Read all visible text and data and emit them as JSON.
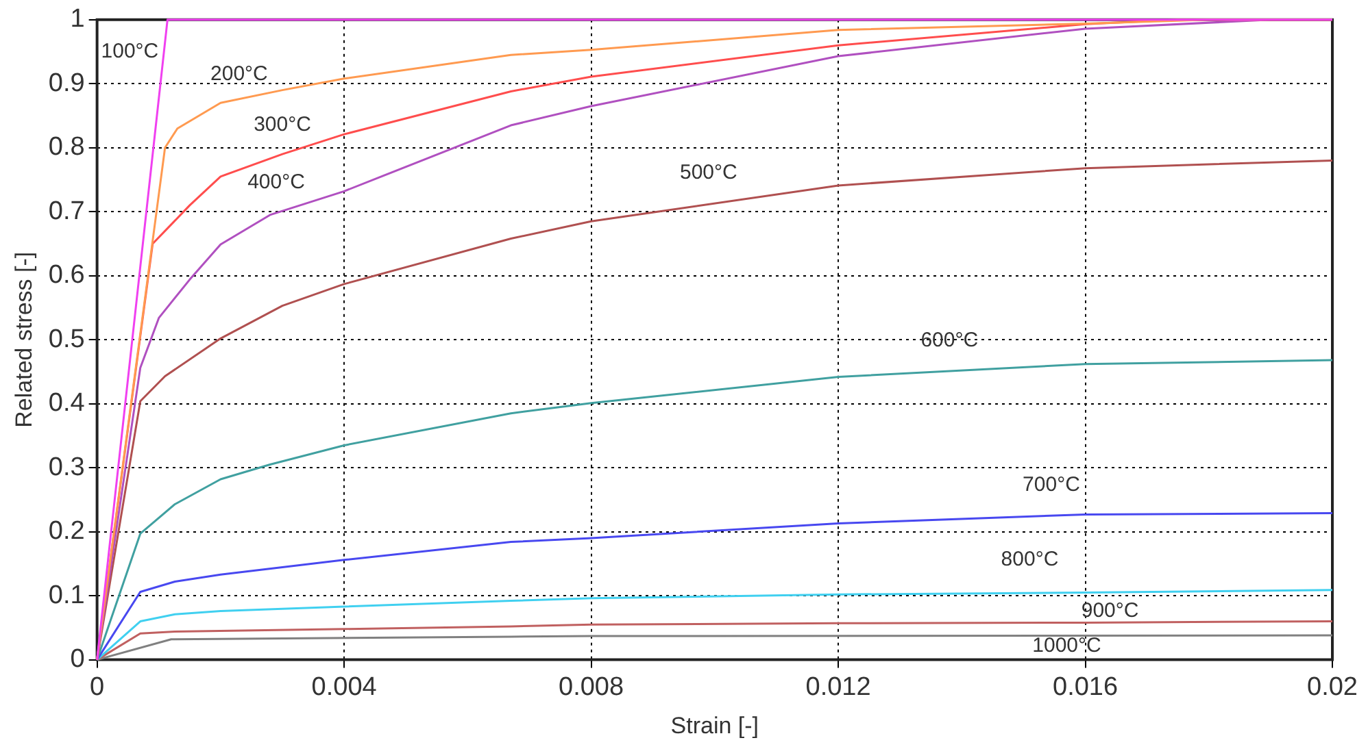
{
  "chart_data": {
    "type": "line",
    "xlabel": "Strain [-]",
    "ylabel": "Related stress [-]",
    "xlim": [
      0,
      0.02
    ],
    "ylim": [
      0,
      1
    ],
    "xticks": [
      0,
      0.004,
      0.008,
      0.012,
      0.016,
      0.02
    ],
    "yticks": [
      0,
      0.1,
      0.2,
      0.3,
      0.4,
      0.5,
      0.6,
      0.7,
      0.8,
      0.9,
      1
    ],
    "grid": true,
    "legend": false,
    "marker": "none",
    "line_style": "solid",
    "series": [
      {
        "name": "100°C",
        "color": "#f040f0",
        "x": [
          0,
          0.00114,
          0.02
        ],
        "values": [
          0,
          1,
          1
        ]
      },
      {
        "name": "200°C",
        "color": "#ff9a50",
        "x": [
          0,
          0.0011,
          0.0013,
          0.002,
          0.003,
          0.004,
          0.0067,
          0.008,
          0.012,
          0.016,
          0.018,
          0.02
        ],
        "values": [
          0,
          0.8,
          0.83,
          0.87,
          0.89,
          0.908,
          0.945,
          0.953,
          0.984,
          0.994,
          1,
          1
        ]
      },
      {
        "name": "300°C",
        "color": "#ff4d4d",
        "x": [
          0,
          0.0009,
          0.0015,
          0.002,
          0.003,
          0.004,
          0.0067,
          0.008,
          0.012,
          0.016,
          0.0175,
          0.02
        ],
        "values": [
          0,
          0.65,
          0.71,
          0.755,
          0.79,
          0.821,
          0.888,
          0.911,
          0.96,
          0.993,
          1,
          1
        ]
      },
      {
        "name": "400°C",
        "color": "#b050c0",
        "x": [
          0,
          0.0007,
          0.001,
          0.0015,
          0.002,
          0.0028,
          0.004,
          0.0067,
          0.008,
          0.012,
          0.016,
          0.019,
          0.02
        ],
        "values": [
          0,
          0.456,
          0.534,
          0.594,
          0.649,
          0.695,
          0.732,
          0.835,
          0.865,
          0.943,
          0.986,
          1,
          1
        ]
      },
      {
        "name": "500°C",
        "color": "#b05050",
        "x": [
          0,
          0.0007,
          0.0011,
          0.002,
          0.003,
          0.004,
          0.0067,
          0.008,
          0.012,
          0.016,
          0.02
        ],
        "values": [
          0,
          0.404,
          0.443,
          0.502,
          0.553,
          0.587,
          0.658,
          0.685,
          0.741,
          0.768,
          0.78
        ]
      },
      {
        "name": "600°C",
        "color": "#40a0a0",
        "x": [
          0,
          0.0007,
          0.00126,
          0.002,
          0.0028,
          0.004,
          0.0067,
          0.008,
          0.012,
          0.016,
          0.02
        ],
        "values": [
          0,
          0.197,
          0.243,
          0.282,
          0.305,
          0.335,
          0.385,
          0.401,
          0.442,
          0.462,
          0.468
        ]
      },
      {
        "name": "700°C",
        "color": "#4848f0",
        "x": [
          0,
          0.0007,
          0.00126,
          0.002,
          0.004,
          0.0067,
          0.008,
          0.012,
          0.016,
          0.02
        ],
        "values": [
          0,
          0.106,
          0.122,
          0.133,
          0.156,
          0.184,
          0.19,
          0.213,
          0.227,
          0.229
        ]
      },
      {
        "name": "800°C",
        "color": "#40d0f0",
        "x": [
          0,
          0.0007,
          0.00126,
          0.002,
          0.004,
          0.0067,
          0.008,
          0.012,
          0.016,
          0.02
        ],
        "values": [
          0,
          0.06,
          0.071,
          0.076,
          0.083,
          0.092,
          0.096,
          0.102,
          0.105,
          0.109
        ]
      },
      {
        "name": "900°C",
        "color": "#c06060",
        "x": [
          0,
          0.0007,
          0.00126,
          0.004,
          0.0067,
          0.008,
          0.012,
          0.016,
          0.02
        ],
        "values": [
          0,
          0.041,
          0.044,
          0.048,
          0.052,
          0.055,
          0.057,
          0.058,
          0.06
        ]
      },
      {
        "name": "1000°C",
        "color": "#808080",
        "x": [
          0,
          0.0012,
          0.0067,
          0.008,
          0.02
        ],
        "values": [
          0,
          0.032,
          0.036,
          0.037,
          0.038
        ]
      }
    ]
  }
}
